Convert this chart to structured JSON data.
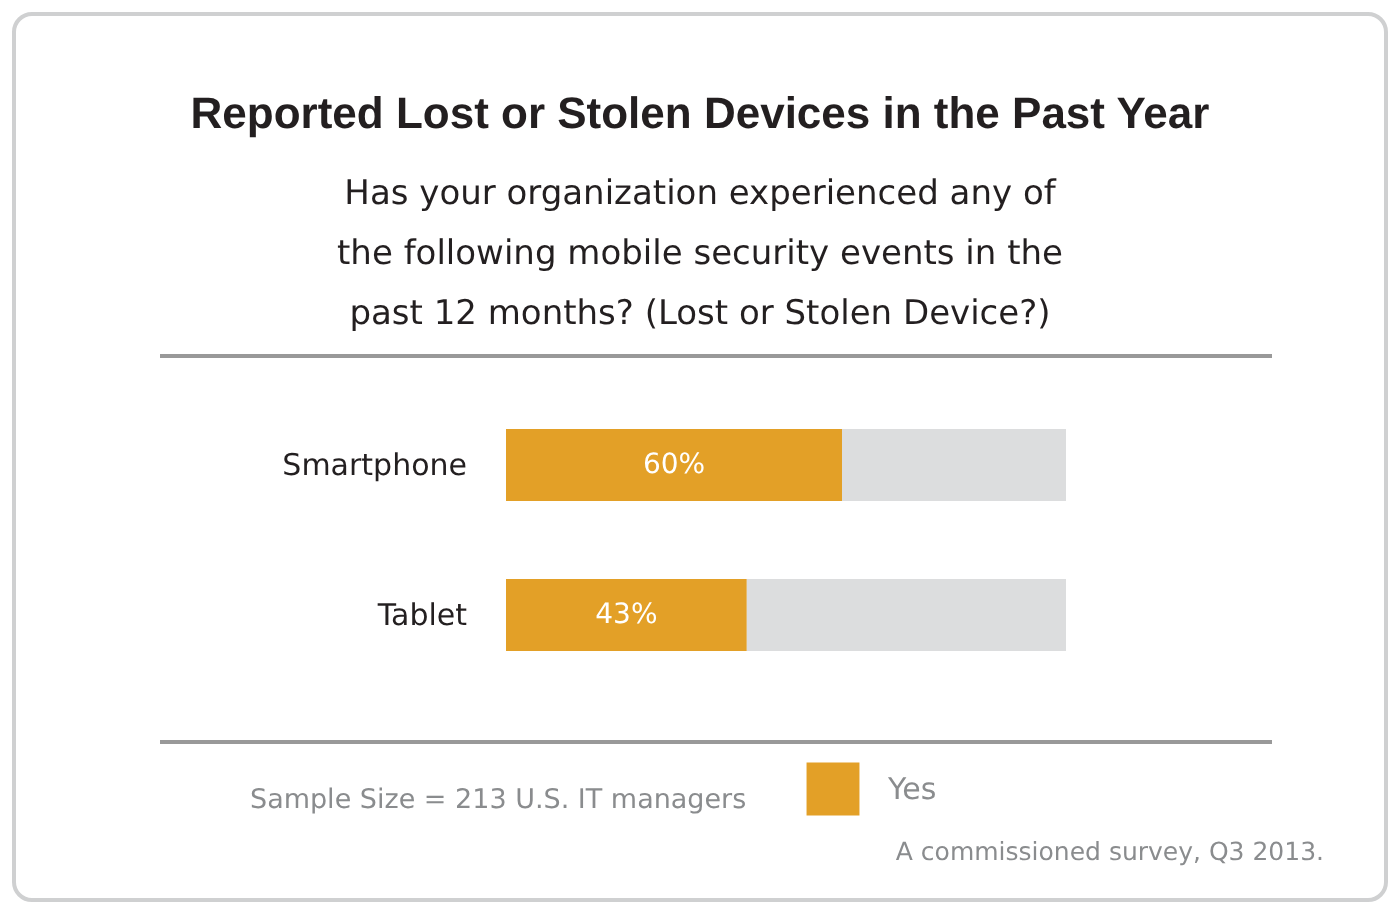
{
  "chart_data": {
    "type": "bar",
    "orientation": "horizontal",
    "stacked": true,
    "title": "Reported Lost or Stolen Devices in the Past Year",
    "subtitle": "Has your organization experienced any of the following mobile security events in the past 12 months? (Lost or Stolen Device?)",
    "categories": [
      "Smartphone",
      "Tablet"
    ],
    "series": [
      {
        "name": "Yes",
        "color": "#e3a027",
        "values": [
          60,
          43
        ],
        "value_labels": [
          "60%",
          "43%"
        ]
      },
      {
        "color": "#dcddde",
        "values": [
          40,
          57
        ]
      }
    ],
    "xlim": [
      0,
      100
    ],
    "tick_labels": "y",
    "grid": false,
    "legend": "bottom",
    "annotations": [
      "Sample Size = 213 U.S. IT managers",
      "A commissioned survey, Q3 2013."
    ]
  }
}
